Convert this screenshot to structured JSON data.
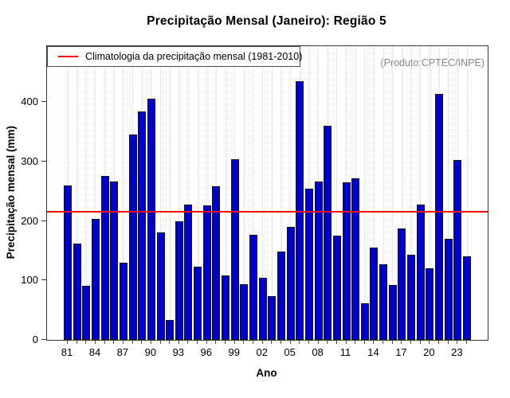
{
  "title": "Precipitação Mensal (Janeiro): Região 5",
  "watermark": "(Produto:CPTEC/INPE)",
  "legend": {
    "label": "Climatologia da precipitação mensal (1981-2010)",
    "line_color": "#FF0000"
  },
  "chart_data": {
    "type": "bar",
    "title": "Precipitação Mensal (Janeiro): Região 5",
    "xlabel": "Ano",
    "ylabel": "Precipitação mensal (mm)",
    "years": [
      1981,
      1982,
      1983,
      1984,
      1985,
      1986,
      1987,
      1988,
      1989,
      1990,
      1991,
      1992,
      1993,
      1994,
      1995,
      1996,
      1997,
      1998,
      1999,
      2000,
      2001,
      2002,
      2003,
      2004,
      2005,
      2006,
      2007,
      2008,
      2009,
      2010,
      2011,
      2012,
      2013,
      2014,
      2015,
      2016,
      2017,
      2018,
      2019,
      2020,
      2021,
      2022,
      2023,
      2024
    ],
    "values": [
      260,
      162,
      91,
      204,
      276,
      266,
      130,
      345,
      384,
      406,
      181,
      34,
      200,
      227,
      123,
      226,
      258,
      108,
      304,
      94,
      177,
      104,
      74,
      149,
      190,
      435,
      254,
      267,
      360,
      175,
      265,
      272,
      61,
      155,
      127,
      92,
      187,
      143,
      227,
      121,
      414,
      170,
      302,
      140
    ],
    "x_tick_labels": [
      "81",
      "84",
      "87",
      "90",
      "93",
      "96",
      "99",
      "02",
      "05",
      "08",
      "11",
      "14",
      "17",
      "20",
      "23"
    ],
    "x_tick_every": 3,
    "y_ticks": [
      0,
      100,
      200,
      300,
      400
    ],
    "ylim": [
      0,
      494
    ],
    "climatology_value": 215,
    "legend_label": "Climatologia da precipitação mensal (1981-2010)",
    "bar_color": "#0000CD",
    "bar_border_color": "#151515",
    "climatology_color": "#FF0000",
    "grid": "vertical-dotted",
    "legend_position": "topleft"
  }
}
